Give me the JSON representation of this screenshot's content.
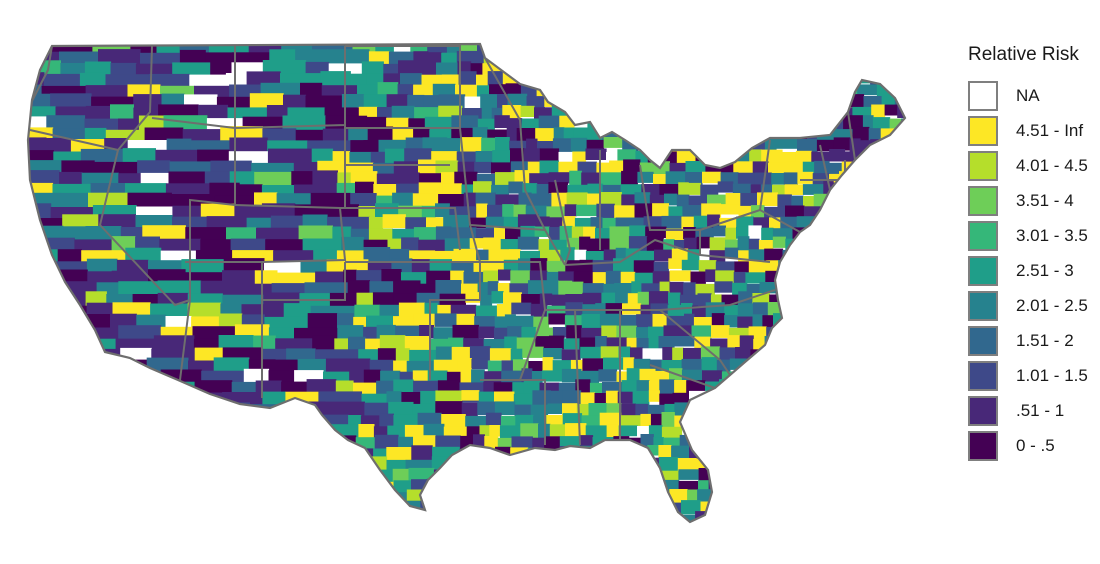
{
  "legend": {
    "title": "Relative Risk",
    "classes": [
      {
        "label": "NA",
        "color": "#ffffff"
      },
      {
        "label": "4.51 - Inf",
        "color": "#fde725"
      },
      {
        "label": "4.01 - 4.5",
        "color": "#b5de2b"
      },
      {
        "label": "3.51 - 4",
        "color": "#6ece58"
      },
      {
        "label": "3.01 - 3.5",
        "color": "#35b779"
      },
      {
        "label": "2.51 - 3",
        "color": "#1f9e89"
      },
      {
        "label": "2.01 - 2.5",
        "color": "#26828e"
      },
      {
        "label": "1.51 - 2",
        "color": "#31688e"
      },
      {
        "label": "1.01 - 1.5",
        "color": "#3e4989"
      },
      {
        "label": ".51 - 1",
        "color": "#482878"
      },
      {
        "label": "0 - .5",
        "color": "#440154"
      }
    ]
  },
  "map": {
    "region": "contiguous-united-states",
    "unit": "county",
    "boundary_color": "#6e6e6e"
  }
}
